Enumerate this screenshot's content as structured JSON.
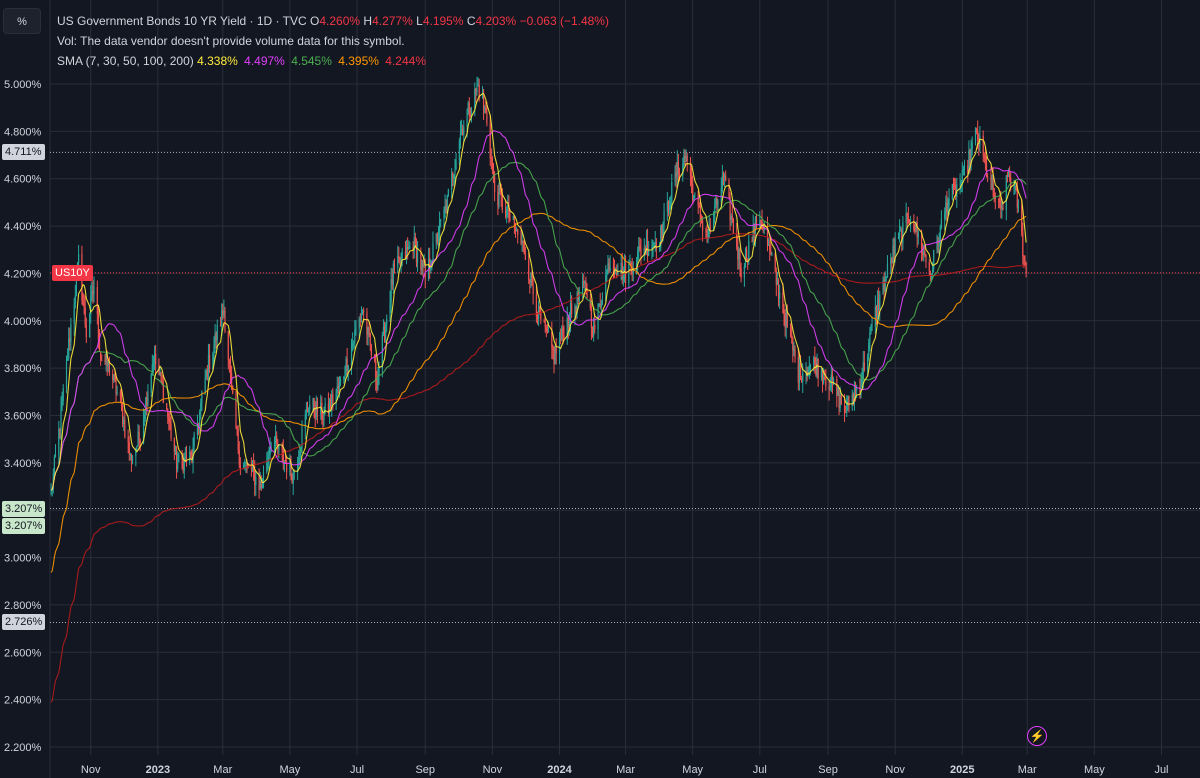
{
  "unit_button": "%",
  "legend": {
    "symbol_title": "US Government Bonds 10 YR Yield · 1D · TVC",
    "ohlc": [
      {
        "label": "O",
        "value": "4.260%"
      },
      {
        "label": "H",
        "value": "4.277%"
      },
      {
        "label": "L",
        "value": "4.195%"
      },
      {
        "label": "C",
        "value": "4.203%"
      }
    ],
    "change": "−0.063 (−1.48%)",
    "volume_note": "Vol: The data vendor doesn't provide volume data for this symbol.",
    "sma_label": "SMA (7, 30, 50, 100, 200)",
    "sma_values": [
      {
        "value": "4.338%",
        "color": "#ffeb3b"
      },
      {
        "value": "4.497%",
        "color": "#e040fb"
      },
      {
        "value": "4.545%",
        "color": "#4caf50"
      },
      {
        "value": "4.395%",
        "color": "#ff9800"
      },
      {
        "value": "4.244%",
        "color": "#f23645"
      }
    ]
  },
  "colors": {
    "background": "#131722",
    "grid": "#2a2e39",
    "candle_up": "#26a69a",
    "candle_down": "#ef5350",
    "sma7": "#ffeb3b",
    "sma30": "#e040fb",
    "sma50": "#4caf50",
    "sma100": "#ff9800",
    "sma200": "#b71c1c"
  },
  "price_tags": [
    {
      "text": "4.711%",
      "style": "white",
      "value": 4.711
    },
    {
      "text": "3.207%",
      "style": "green",
      "value": 3.207
    },
    {
      "text": "3.207%",
      "style": "green",
      "value": 3.207
    },
    {
      "text": "2.726%",
      "style": "white",
      "value": 2.726
    }
  ],
  "symbol_tag": {
    "text": "US10Y",
    "value": 4.203
  },
  "chart_data": {
    "type": "candlestick",
    "x_type": "date",
    "y_unit": "%",
    "ylim": [
      2.2,
      5.05
    ],
    "xlim": [
      "2022-09-25",
      "2025-08-05"
    ],
    "grid": true,
    "y_ticks": [
      "5.000%",
      "4.800%",
      "4.600%",
      "4.400%",
      "4.200%",
      "4.000%",
      "3.800%",
      "3.600%",
      "3.400%",
      "3.200%",
      "3.000%",
      "2.800%",
      "2.600%",
      "2.400%",
      "2.200%"
    ],
    "x_ticks": [
      {
        "label": "Nov",
        "date": "2022-11-01"
      },
      {
        "label": "2023",
        "date": "2023-01-01"
      },
      {
        "label": "Mar",
        "date": "2023-03-01"
      },
      {
        "label": "May",
        "date": "2023-05-01"
      },
      {
        "label": "Jul",
        "date": "2023-07-01"
      },
      {
        "label": "Sep",
        "date": "2023-09-01"
      },
      {
        "label": "Nov",
        "date": "2023-11-01"
      },
      {
        "label": "2024",
        "date": "2024-01-01"
      },
      {
        "label": "Mar",
        "date": "2024-03-01"
      },
      {
        "label": "May",
        "date": "2024-05-01"
      },
      {
        "label": "Jul",
        "date": "2024-07-01"
      },
      {
        "label": "Sep",
        "date": "2024-09-01"
      },
      {
        "label": "Nov",
        "date": "2024-11-01"
      },
      {
        "label": "2025",
        "date": "2025-01-01"
      },
      {
        "label": "Mar",
        "date": "2025-03-01"
      },
      {
        "label": "May",
        "date": "2025-05-01"
      },
      {
        "label": "Jul",
        "date": "2025-07-01"
      }
    ],
    "price_path": [
      [
        "2022-09-26",
        3.27
      ],
      [
        "2022-10-05",
        3.6
      ],
      [
        "2022-10-12",
        3.9
      ],
      [
        "2022-10-21",
        4.25
      ],
      [
        "2022-10-28",
        3.95
      ],
      [
        "2022-11-04",
        4.15
      ],
      [
        "2022-11-10",
        3.85
      ],
      [
        "2022-11-18",
        3.8
      ],
      [
        "2022-11-28",
        3.65
      ],
      [
        "2022-12-07",
        3.42
      ],
      [
        "2022-12-15",
        3.5
      ],
      [
        "2022-12-28",
        3.85
      ],
      [
        "2023-01-05",
        3.72
      ],
      [
        "2023-01-18",
        3.4
      ],
      [
        "2023-02-01",
        3.42
      ],
      [
        "2023-02-15",
        3.8
      ],
      [
        "2023-03-02",
        4.05
      ],
      [
        "2023-03-10",
        3.65
      ],
      [
        "2023-03-17",
        3.4
      ],
      [
        "2023-03-24",
        3.38
      ],
      [
        "2023-04-05",
        3.3
      ],
      [
        "2023-04-14",
        3.5
      ],
      [
        "2023-05-04",
        3.35
      ],
      [
        "2023-05-18",
        3.65
      ],
      [
        "2023-06-01",
        3.6
      ],
      [
        "2023-06-15",
        3.72
      ],
      [
        "2023-07-06",
        4.05
      ],
      [
        "2023-07-19",
        3.75
      ],
      [
        "2023-08-03",
        4.2
      ],
      [
        "2023-08-21",
        4.33
      ],
      [
        "2023-09-01",
        4.18
      ],
      [
        "2023-09-21",
        4.5
      ],
      [
        "2023-10-03",
        4.8
      ],
      [
        "2023-10-19",
        4.99
      ],
      [
        "2023-10-27",
        4.85
      ],
      [
        "2023-11-03",
        4.55
      ],
      [
        "2023-11-15",
        4.45
      ],
      [
        "2023-11-30",
        4.3
      ],
      [
        "2023-12-13",
        4.02
      ],
      [
        "2023-12-27",
        3.85
      ],
      [
        "2024-01-10",
        4.02
      ],
      [
        "2024-01-25",
        4.15
      ],
      [
        "2024-02-01",
        3.95
      ],
      [
        "2024-02-15",
        4.25
      ],
      [
        "2024-03-01",
        4.2
      ],
      [
        "2024-03-15",
        4.3
      ],
      [
        "2024-04-01",
        4.35
      ],
      [
        "2024-04-16",
        4.62
      ],
      [
        "2024-04-25",
        4.7
      ],
      [
        "2024-05-03",
        4.5
      ],
      [
        "2024-05-15",
        4.35
      ],
      [
        "2024-05-29",
        4.6
      ],
      [
        "2024-06-14",
        4.22
      ],
      [
        "2024-07-01",
        4.45
      ],
      [
        "2024-07-17",
        4.15
      ],
      [
        "2024-08-05",
        3.78
      ],
      [
        "2024-08-20",
        3.82
      ],
      [
        "2024-09-06",
        3.72
      ],
      [
        "2024-09-16",
        3.62
      ],
      [
        "2024-10-01",
        3.75
      ],
      [
        "2024-10-15",
        4.05
      ],
      [
        "2024-10-31",
        4.3
      ],
      [
        "2024-11-15",
        4.45
      ],
      [
        "2024-12-03",
        4.2
      ],
      [
        "2024-12-18",
        4.5
      ],
      [
        "2025-01-02",
        4.6
      ],
      [
        "2025-01-14",
        4.79
      ],
      [
        "2025-01-24",
        4.62
      ],
      [
        "2025-02-05",
        4.45
      ],
      [
        "2025-02-12",
        4.62
      ],
      [
        "2025-02-20",
        4.5
      ],
      [
        "2025-02-28",
        4.2
      ]
    ]
  }
}
